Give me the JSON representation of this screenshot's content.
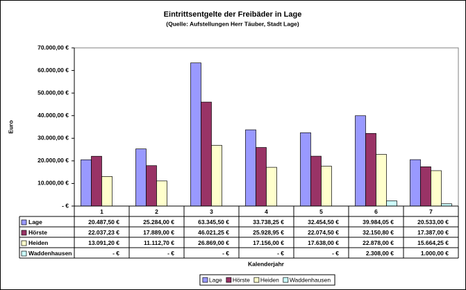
{
  "chart_data": {
    "type": "bar",
    "title": "Eintrittsentgelte der Freibäder in Lage",
    "subtitle": "(Quelle: Aufstellungen Herr Täuber, Stadt Lage)",
    "y_label": "Euro",
    "x_label": "Kalenderjahr",
    "categories": [
      "1",
      "2",
      "3",
      "4",
      "5",
      "6",
      "7"
    ],
    "ylim": [
      0,
      70000
    ],
    "yticks": [
      {
        "value": 0,
        "label": "-   €"
      },
      {
        "value": 10000,
        "label": "10.000,00 €"
      },
      {
        "value": 20000,
        "label": "20.000,00 €"
      },
      {
        "value": 30000,
        "label": "30.000,00 €"
      },
      {
        "value": 40000,
        "label": "40.000,00 €"
      },
      {
        "value": 50000,
        "label": "50.000,00 €"
      },
      {
        "value": 60000,
        "label": "60.000,00 €"
      },
      {
        "value": 70000,
        "label": "70.000,00 €"
      }
    ],
    "series": [
      {
        "name": "Lage",
        "color": "#9999ff",
        "values": [
          20487.5,
          25284,
          63345.5,
          33738.25,
          32454.5,
          39984.05,
          20533
        ],
        "value_labels": [
          "20.487,50 €",
          "25.284,00 €",
          "63.345,50 €",
          "33.738,25 €",
          "32.454,50 €",
          "39.984,05 €",
          "20.533,00 €"
        ]
      },
      {
        "name": "Hörste",
        "color": "#993366",
        "values": [
          22037.23,
          17889,
          46021.25,
          25928.95,
          22074.5,
          32150.8,
          17387
        ],
        "value_labels": [
          "22.037,23 €",
          "17.889,00 €",
          "46.021,25 €",
          "25.928,95 €",
          "22.074,50 €",
          "32.150,80 €",
          "17.387,00 €"
        ]
      },
      {
        "name": "Heiden",
        "color": "#ffffcc",
        "values": [
          13091.2,
          11112.7,
          26869,
          17156,
          17638,
          22878,
          15664.25
        ],
        "value_labels": [
          "13.091,20 €",
          "11.112,70 €",
          "26.869,00 €",
          "17.156,00 €",
          "17.638,00 €",
          "22.878,00 €",
          "15.664,25 €"
        ]
      },
      {
        "name": "Waddenhausen",
        "color": "#ccffff",
        "values": [
          0,
          0,
          0,
          0,
          0,
          2308,
          1000
        ],
        "value_labels": [
          "-   €",
          "-   €",
          "-   €",
          "-   €",
          "-   €",
          "2.308,00 €",
          "1.000,00 €"
        ]
      }
    ]
  }
}
